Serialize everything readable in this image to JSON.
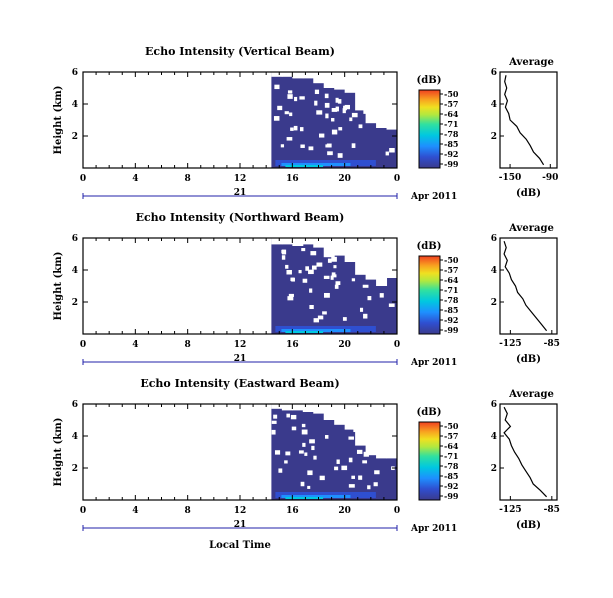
{
  "figure": {
    "xlabel": "Local Time",
    "colorbar_unit": "(dB)",
    "colorbar_ticks": [
      "-50",
      "-57",
      "-64",
      "-71",
      "-78",
      "-85",
      "-92",
      "-99"
    ],
    "colorscale": [
      "#3a3a8c",
      "#2f4fd0",
      "#1e90ff",
      "#00c8e0",
      "#30e0a0",
      "#b0e840",
      "#f0e020",
      "#f8a020",
      "#f04020"
    ],
    "background_color": "#3a3a8c",
    "date_label": "Apr 2011",
    "day_label": "21"
  },
  "chart_data": [
    {
      "type": "heatmap",
      "title": "Echo Intensity (Vertical Beam)",
      "ylabel": "Height (km)",
      "x_ticks": [
        "0",
        "4",
        "8",
        "12",
        "16",
        "20",
        "0"
      ],
      "y_ticks": [
        "6",
        "4",
        "2"
      ],
      "x_range": [
        0,
        24
      ],
      "y_range": [
        0,
        6
      ],
      "data_start_hour": 14.4,
      "high_cutoff_km": [
        5.7,
        5.7,
        5.6,
        5.6,
        5.3,
        5.0,
        4.9,
        4.7,
        3.6,
        2.8,
        2.5,
        2.4
      ],
      "avg_profile": {
        "title": "Average",
        "xlabel": "(dB)",
        "x_ticks": [
          "-150",
          "-90"
        ],
        "x_range": [
          -165,
          -80
        ],
        "y_ticks": [
          "6",
          "4",
          "2"
        ],
        "heights_km": [
          0.2,
          0.6,
          1.0,
          1.4,
          1.8,
          2.2,
          2.6,
          3.0,
          3.4,
          3.8,
          4.2,
          4.6,
          5.0,
          5.4,
          5.8
        ],
        "values_db": [
          -100,
          -106,
          -115,
          -120,
          -126,
          -135,
          -140,
          -150,
          -152,
          -157,
          -154,
          -158,
          -155,
          -158,
          -156
        ]
      }
    },
    {
      "type": "heatmap",
      "title": "Echo Intensity (Northward Beam)",
      "ylabel": "Height (km)",
      "x_ticks": [
        "0",
        "4",
        "8",
        "12",
        "16",
        "20",
        "0"
      ],
      "y_ticks": [
        "6",
        "4",
        "2"
      ],
      "x_range": [
        0,
        24
      ],
      "y_range": [
        0,
        6
      ],
      "data_start_hour": 14.4,
      "high_cutoff_km": [
        5.6,
        5.6,
        5.5,
        5.6,
        5.4,
        4.8,
        4.9,
        4.5,
        3.7,
        3.4,
        3.0,
        3.5
      ],
      "avg_profile": {
        "title": "Average",
        "xlabel": "(dB)",
        "x_ticks": [
          "-125",
          "-85"
        ],
        "x_range": [
          -135,
          -80
        ],
        "y_ticks": [
          "6",
          "4",
          "2"
        ],
        "heights_km": [
          0.2,
          0.6,
          1.0,
          1.4,
          1.8,
          2.2,
          2.6,
          3.0,
          3.4,
          3.8,
          4.2,
          4.6,
          5.0,
          5.4,
          5.8
        ],
        "values_db": [
          -90,
          -95,
          -100,
          -105,
          -110,
          -113,
          -118,
          -120,
          -124,
          -126,
          -130,
          -128,
          -131,
          -129,
          -131
        ]
      }
    },
    {
      "type": "heatmap",
      "title": "Echo Intensity (Eastward Beam)",
      "ylabel": "Height (km)",
      "x_ticks": [
        "0",
        "4",
        "8",
        "12",
        "16",
        "20",
        "0"
      ],
      "y_ticks": [
        "6",
        "4",
        "2"
      ],
      "x_range": [
        0,
        24
      ],
      "y_range": [
        0,
        6
      ],
      "data_start_hour": 14.4,
      "high_cutoff_km": [
        5.7,
        5.6,
        5.6,
        5.5,
        5.4,
        5.0,
        4.7,
        4.4,
        3.4,
        2.8,
        2.6,
        2.6
      ],
      "avg_profile": {
        "title": "Average",
        "xlabel": "(dB)",
        "x_ticks": [
          "-125",
          "-85"
        ],
        "x_range": [
          -135,
          -80
        ],
        "y_ticks": [
          "6",
          "4",
          "2"
        ],
        "heights_km": [
          0.2,
          0.6,
          1.0,
          1.4,
          1.8,
          2.2,
          2.6,
          3.0,
          3.4,
          3.8,
          4.2,
          4.6,
          5.0,
          5.4,
          5.8
        ],
        "values_db": [
          -90,
          -96,
          -103,
          -106,
          -110,
          -114,
          -117,
          -121,
          -124,
          -126,
          -131,
          -125,
          -130,
          -128,
          -131
        ]
      }
    }
  ]
}
